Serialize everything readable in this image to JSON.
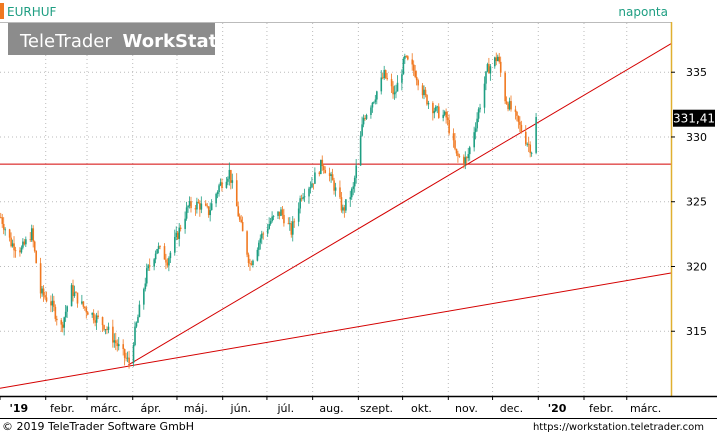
{
  "header": {
    "symbol": "EURHUF",
    "interval": "naponta",
    "watermark_brand": "TeleTrader",
    "watermark_product": "WorkStation"
  },
  "footer": {
    "copyright": "© 2019 TeleTrader Software GmbH",
    "url": "https://workstation.teletrader.com"
  },
  "colors": {
    "up": "#1e9e82",
    "down": "#f07820",
    "trendline": "#d40000",
    "grid": "#bbbbbb",
    "axis_border": "#e0b030",
    "price_tag_bg": "#000000",
    "title": "#1e9e82"
  },
  "chart_data": {
    "type": "candlestick",
    "y_ticks": [
      315,
      320,
      325,
      330,
      335
    ],
    "ylim": [
      310,
      338.8
    ],
    "x_ticks": [
      "'19",
      "febr.",
      "márc.",
      "ápr.",
      "máj.",
      "jún.",
      "júl.",
      "aug.",
      "szept.",
      "okt.",
      "nov.",
      "dec.",
      "'20",
      "febr.",
      "márc."
    ],
    "x_range": [
      "2019-01-01",
      "2020-03-31"
    ],
    "last_price": "331,41",
    "grid": true,
    "price_path": [
      [
        "2019-01-01",
        323.8
      ],
      [
        "2019-01-08",
        321.8
      ],
      [
        "2019-01-15",
        321.3
      ],
      [
        "2019-01-22",
        322.6
      ],
      [
        "2019-01-28",
        318.0
      ],
      [
        "2019-02-04",
        317.2
      ],
      [
        "2019-02-11",
        315.3
      ],
      [
        "2019-02-18",
        318.2
      ],
      [
        "2019-02-25",
        317.0
      ],
      [
        "2019-03-05",
        316.2
      ],
      [
        "2019-03-12",
        315.5
      ],
      [
        "2019-03-19",
        314.3
      ],
      [
        "2019-03-26",
        313.0
      ],
      [
        "2019-03-29",
        312.6
      ],
      [
        "2019-04-03",
        315.5
      ],
      [
        "2019-04-10",
        319.5
      ],
      [
        "2019-04-17",
        321.5
      ],
      [
        "2019-04-24",
        320.5
      ],
      [
        "2019-05-01",
        322.5
      ],
      [
        "2019-05-08",
        324.6
      ],
      [
        "2019-05-15",
        324.8
      ],
      [
        "2019-05-22",
        324.2
      ],
      [
        "2019-05-29",
        326.2
      ],
      [
        "2019-06-05",
        327.3
      ],
      [
        "2019-06-12",
        323.5
      ],
      [
        "2019-06-19",
        320.2
      ],
      [
        "2019-06-26",
        322.2
      ],
      [
        "2019-07-03",
        323.5
      ],
      [
        "2019-07-10",
        324.2
      ],
      [
        "2019-07-17",
        322.7
      ],
      [
        "2019-07-24",
        325.6
      ],
      [
        "2019-07-31",
        326.5
      ],
      [
        "2019-08-07",
        328.0
      ],
      [
        "2019-08-14",
        326.5
      ],
      [
        "2019-08-21",
        324.3
      ],
      [
        "2019-08-28",
        326.0
      ],
      [
        "2019-09-04",
        331.5
      ],
      [
        "2019-09-11",
        333.0
      ],
      [
        "2019-09-18",
        334.8
      ],
      [
        "2019-09-25",
        333.2
      ],
      [
        "2019-10-02",
        336.0
      ],
      [
        "2019-10-09",
        335.0
      ],
      [
        "2019-10-16",
        333.0
      ],
      [
        "2019-10-23",
        332.0
      ],
      [
        "2019-10-30",
        331.5
      ],
      [
        "2019-11-06",
        328.5
      ],
      [
        "2019-11-13",
        328.2
      ],
      [
        "2019-11-20",
        331.5
      ],
      [
        "2019-11-27",
        335.2
      ],
      [
        "2019-12-04",
        336.2
      ],
      [
        "2019-12-09",
        333.0
      ],
      [
        "2019-12-16",
        331.5
      ],
      [
        "2019-12-23",
        329.8
      ],
      [
        "2019-12-27",
        329.0
      ],
      [
        "2019-12-30",
        331.4
      ]
    ],
    "trendlines": [
      {
        "from": [
          "2019-01-01",
          310.6
        ],
        "to": [
          "2020-03-31",
          319.5
        ]
      },
      {
        "from": [
          "2019-03-29",
          312.4
        ],
        "to": [
          "2020-03-31",
          337.2
        ]
      },
      {
        "from": [
          "2019-01-01",
          327.9
        ],
        "to": [
          "2020-03-31",
          327.9
        ]
      }
    ]
  }
}
